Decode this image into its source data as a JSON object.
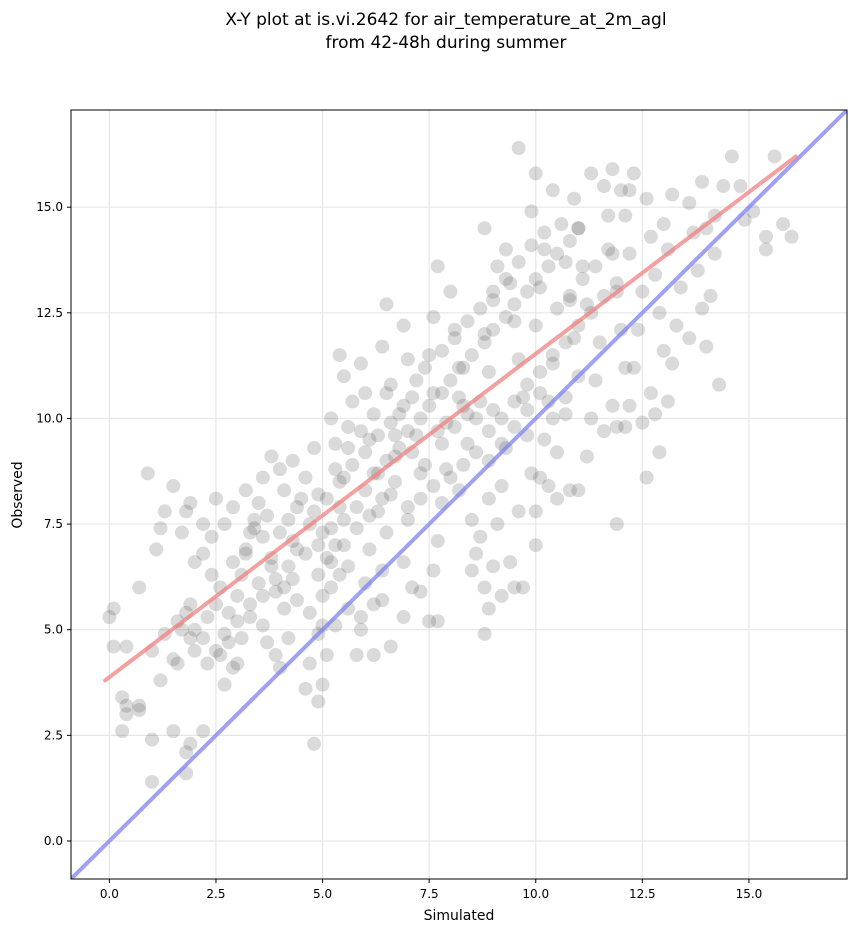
{
  "chart_data": {
    "type": "scatter",
    "title": "X-Y plot at is.vi.2642 for air_temperature_at_2m_agl",
    "subtitle": "from 42-48h during summer",
    "xlabel": "Simulated",
    "ylabel": "Observed",
    "xlim": [
      -0.9,
      17.3
    ],
    "ylim": [
      -0.9,
      17.3
    ],
    "xticks": [
      0.0,
      2.5,
      5.0,
      7.5,
      10.0,
      12.5,
      15.0
    ],
    "yticks": [
      0.0,
      2.5,
      5.0,
      7.5,
      10.0,
      12.5,
      15.0
    ],
    "tick_labels": [
      "0.0",
      "2.5",
      "5.0",
      "7.5",
      "10.0",
      "12.5",
      "15.0"
    ],
    "grid": true,
    "point_color": "#555555",
    "regression_line": {
      "color": "#f08080",
      "x": [
        -0.1,
        16.1
      ],
      "y": [
        3.8,
        16.2
      ]
    },
    "identity_line": {
      "color": "#8080f0",
      "x": [
        -0.9,
        17.3
      ],
      "y": [
        -0.9,
        17.3
      ]
    },
    "points": [
      [
        0.0,
        5.3
      ],
      [
        0.1,
        5.5
      ],
      [
        0.1,
        4.6
      ],
      [
        0.4,
        4.6
      ],
      [
        0.3,
        3.4
      ],
      [
        0.4,
        3.2
      ],
      [
        0.4,
        3.0
      ],
      [
        0.3,
        2.6
      ],
      [
        0.7,
        3.1
      ],
      [
        0.7,
        3.2
      ],
      [
        0.7,
        6.0
      ],
      [
        0.9,
        8.7
      ],
      [
        1.1,
        6.9
      ],
      [
        1.2,
        7.4
      ],
      [
        1.3,
        7.8
      ],
      [
        1.5,
        8.4
      ],
      [
        1.0,
        4.5
      ],
      [
        1.3,
        4.9
      ],
      [
        1.2,
        3.8
      ],
      [
        1.0,
        2.4
      ],
      [
        1.0,
        1.4
      ],
      [
        1.5,
        2.6
      ],
      [
        1.8,
        2.1
      ],
      [
        1.9,
        2.3
      ],
      [
        1.8,
        1.6
      ],
      [
        2.2,
        2.6
      ],
      [
        1.5,
        4.3
      ],
      [
        1.6,
        4.2
      ],
      [
        1.7,
        5.0
      ],
      [
        1.8,
        5.4
      ],
      [
        1.9,
        5.6
      ],
      [
        1.7,
        7.3
      ],
      [
        1.8,
        7.8
      ],
      [
        1.9,
        8.0
      ],
      [
        2.0,
        6.6
      ],
      [
        2.2,
        7.5
      ],
      [
        2.5,
        8.1
      ],
      [
        2.0,
        4.5
      ],
      [
        2.3,
        4.2
      ],
      [
        2.6,
        4.4
      ],
      [
        2.7,
        3.7
      ],
      [
        2.9,
        4.1
      ],
      [
        2.8,
        5.4
      ],
      [
        3.0,
        5.8
      ],
      [
        3.1,
        6.3
      ],
      [
        3.2,
        6.8
      ],
      [
        3.3,
        7.3
      ],
      [
        3.4,
        7.6
      ],
      [
        3.5,
        8.0
      ],
      [
        3.6,
        7.2
      ],
      [
        3.8,
        6.5
      ],
      [
        3.9,
        5.9
      ],
      [
        3.6,
        5.1
      ],
      [
        3.7,
        4.7
      ],
      [
        3.9,
        4.4
      ],
      [
        4.0,
        4.1
      ],
      [
        4.2,
        4.8
      ],
      [
        4.1,
        5.5
      ],
      [
        4.3,
        6.2
      ],
      [
        4.4,
        6.9
      ],
      [
        4.2,
        7.6
      ],
      [
        4.5,
        8.1
      ],
      [
        4.0,
        8.8
      ],
      [
        3.8,
        9.1
      ],
      [
        4.3,
        9.0
      ],
      [
        4.6,
        8.6
      ],
      [
        4.8,
        9.3
      ],
      [
        4.9,
        8.2
      ],
      [
        5.0,
        7.3
      ],
      [
        5.1,
        6.7
      ],
      [
        5.0,
        5.8
      ],
      [
        4.9,
        4.9
      ],
      [
        4.7,
        4.2
      ],
      [
        4.6,
        3.6
      ],
      [
        4.9,
        3.3
      ],
      [
        4.8,
        2.3
      ],
      [
        5.0,
        3.7
      ],
      [
        5.1,
        4.4
      ],
      [
        5.3,
        5.1
      ],
      [
        5.2,
        6.0
      ],
      [
        5.3,
        7.0
      ],
      [
        5.4,
        7.9
      ],
      [
        5.5,
        8.6
      ],
      [
        5.3,
        9.4
      ],
      [
        5.2,
        10.0
      ],
      [
        5.6,
        9.8
      ],
      [
        5.7,
        10.4
      ],
      [
        5.5,
        11.0
      ],
      [
        5.4,
        11.5
      ],
      [
        5.9,
        11.3
      ],
      [
        6.0,
        10.6
      ],
      [
        6.1,
        9.5
      ],
      [
        6.2,
        8.7
      ],
      [
        6.3,
        7.8
      ],
      [
        6.1,
        6.9
      ],
      [
        6.0,
        6.1
      ],
      [
        5.9,
        5.3
      ],
      [
        5.8,
        4.4
      ],
      [
        6.2,
        5.6
      ],
      [
        6.4,
        6.4
      ],
      [
        6.5,
        7.3
      ],
      [
        6.6,
        8.2
      ],
      [
        6.7,
        9.1
      ],
      [
        6.8,
        10.1
      ],
      [
        6.6,
        10.8
      ],
      [
        6.4,
        11.7
      ],
      [
        6.5,
        12.7
      ],
      [
        6.9,
        12.2
      ],
      [
        7.0,
        11.4
      ],
      [
        7.1,
        10.5
      ],
      [
        7.2,
        9.6
      ],
      [
        7.3,
        8.7
      ],
      [
        7.0,
        7.6
      ],
      [
        6.9,
        6.6
      ],
      [
        7.1,
        6.0
      ],
      [
        7.3,
        5.9
      ],
      [
        7.5,
        5.2
      ],
      [
        7.7,
        5.2
      ],
      [
        7.6,
        6.4
      ],
      [
        7.7,
        7.1
      ],
      [
        7.8,
        8.0
      ],
      [
        7.9,
        8.8
      ],
      [
        7.7,
        9.7
      ],
      [
        7.6,
        10.6
      ],
      [
        7.5,
        11.5
      ],
      [
        7.6,
        12.4
      ],
      [
        7.7,
        13.6
      ],
      [
        8.0,
        13.0
      ],
      [
        8.1,
        12.1
      ],
      [
        8.2,
        11.2
      ],
      [
        8.3,
        10.3
      ],
      [
        8.4,
        9.4
      ],
      [
        8.2,
        8.3
      ],
      [
        8.5,
        7.6
      ],
      [
        8.6,
        6.8
      ],
      [
        8.8,
        6.0
      ],
      [
        8.8,
        4.9
      ],
      [
        8.9,
        5.5
      ],
      [
        9.0,
        6.5
      ],
      [
        9.1,
        7.5
      ],
      [
        9.2,
        8.4
      ],
      [
        9.3,
        9.3
      ],
      [
        9.0,
        10.2
      ],
      [
        8.9,
        11.1
      ],
      [
        8.8,
        12.0
      ],
      [
        9.0,
        12.8
      ],
      [
        9.1,
        13.6
      ],
      [
        8.8,
        14.5
      ],
      [
        9.3,
        14.0
      ],
      [
        9.4,
        13.2
      ],
      [
        9.5,
        12.3
      ],
      [
        9.6,
        11.4
      ],
      [
        9.7,
        10.5
      ],
      [
        9.8,
        9.6
      ],
      [
        9.9,
        8.7
      ],
      [
        9.6,
        7.8
      ],
      [
        9.4,
        6.6
      ],
      [
        9.7,
        6.0
      ],
      [
        10.0,
        7.0
      ],
      [
        10.0,
        7.8
      ],
      [
        10.1,
        8.6
      ],
      [
        10.2,
        9.5
      ],
      [
        10.3,
        10.4
      ],
      [
        10.4,
        11.3
      ],
      [
        10.0,
        12.2
      ],
      [
        10.1,
        13.1
      ],
      [
        10.2,
        14.0
      ],
      [
        9.9,
        14.9
      ],
      [
        10.0,
        15.8
      ],
      [
        10.4,
        15.4
      ],
      [
        10.6,
        14.6
      ],
      [
        10.7,
        13.7
      ],
      [
        10.8,
        12.8
      ],
      [
        10.9,
        11.9
      ],
      [
        11.0,
        11.0
      ],
      [
        10.7,
        10.1
      ],
      [
        10.5,
        9.2
      ],
      [
        10.3,
        8.4
      ],
      [
        10.5,
        8.1
      ],
      [
        10.8,
        8.3
      ],
      [
        11.0,
        8.3
      ],
      [
        11.2,
        9.1
      ],
      [
        11.3,
        10.0
      ],
      [
        11.4,
        10.9
      ],
      [
        11.5,
        11.8
      ],
      [
        11.2,
        12.7
      ],
      [
        11.1,
        13.6
      ],
      [
        11.0,
        14.5
      ],
      [
        10.9,
        15.2
      ],
      [
        11.3,
        15.8
      ],
      [
        11.6,
        15.5
      ],
      [
        11.7,
        14.8
      ],
      [
        11.8,
        13.9
      ],
      [
        11.9,
        13.0
      ],
      [
        12.0,
        12.1
      ],
      [
        12.1,
        11.2
      ],
      [
        11.8,
        10.3
      ],
      [
        11.6,
        9.7
      ],
      [
        11.9,
        9.8
      ],
      [
        12.1,
        9.8
      ],
      [
        12.2,
        10.3
      ],
      [
        12.3,
        11.2
      ],
      [
        12.4,
        12.1
      ],
      [
        12.5,
        13.0
      ],
      [
        12.2,
        13.9
      ],
      [
        12.1,
        14.8
      ],
      [
        12.0,
        15.4
      ],
      [
        12.3,
        15.8
      ],
      [
        12.6,
        15.2
      ],
      [
        12.7,
        14.3
      ],
      [
        12.8,
        13.4
      ],
      [
        12.9,
        12.5
      ],
      [
        13.0,
        11.6
      ],
      [
        12.7,
        10.6
      ],
      [
        12.5,
        9.9
      ],
      [
        12.6,
        8.6
      ],
      [
        12.9,
        9.2
      ],
      [
        12.8,
        10.1
      ],
      [
        13.1,
        10.4
      ],
      [
        13.2,
        11.3
      ],
      [
        13.3,
        12.2
      ],
      [
        13.4,
        13.1
      ],
      [
        13.1,
        14.0
      ],
      [
        13.0,
        14.6
      ],
      [
        13.2,
        15.3
      ],
      [
        13.6,
        15.1
      ],
      [
        13.7,
        14.4
      ],
      [
        13.8,
        13.5
      ],
      [
        13.9,
        12.6
      ],
      [
        14.0,
        11.7
      ],
      [
        13.6,
        11.9
      ],
      [
        14.1,
        12.9
      ],
      [
        14.2,
        13.9
      ],
      [
        14.0,
        14.5
      ],
      [
        14.3,
        10.8
      ],
      [
        14.2,
        14.8
      ],
      [
        14.4,
        15.5
      ],
      [
        14.6,
        16.2
      ],
      [
        14.8,
        15.5
      ],
      [
        14.9,
        14.7
      ],
      [
        15.1,
        14.9
      ],
      [
        15.4,
        14.3
      ],
      [
        15.4,
        14.0
      ],
      [
        15.6,
        16.2
      ],
      [
        15.8,
        14.6
      ],
      [
        16.0,
        14.3
      ],
      [
        9.6,
        16.4
      ],
      [
        11.8,
        15.9
      ],
      [
        12.2,
        15.4
      ],
      [
        13.9,
        15.6
      ],
      [
        11.9,
        7.5
      ],
      [
        9.2,
        5.8
      ],
      [
        8.5,
        6.4
      ],
      [
        8.7,
        7.2
      ],
      [
        8.9,
        8.1
      ],
      [
        9.5,
        6.0
      ],
      [
        6.6,
        4.6
      ],
      [
        6.9,
        5.3
      ],
      [
        6.4,
        5.7
      ],
      [
        6.2,
        4.4
      ],
      [
        5.9,
        5.0
      ],
      [
        5.6,
        5.5
      ],
      [
        5.6,
        6.5
      ],
      [
        5.4,
        6.3
      ],
      [
        5.0,
        5.1
      ],
      [
        4.7,
        5.4
      ],
      [
        4.4,
        5.7
      ],
      [
        4.1,
        6.0
      ],
      [
        3.8,
        6.7
      ],
      [
        3.5,
        6.1
      ],
      [
        3.3,
        5.3
      ],
      [
        3.1,
        4.8
      ],
      [
        3.0,
        4.2
      ],
      [
        2.7,
        4.9
      ],
      [
        2.5,
        5.6
      ],
      [
        2.4,
        6.3
      ],
      [
        2.2,
        6.8
      ],
      [
        2.4,
        7.2
      ],
      [
        2.7,
        7.5
      ],
      [
        2.9,
        7.9
      ],
      [
        3.2,
        8.3
      ],
      [
        3.6,
        8.6
      ],
      [
        4.1,
        8.3
      ],
      [
        4.4,
        7.9
      ],
      [
        4.7,
        7.5
      ],
      [
        4.9,
        7.0
      ],
      [
        5.2,
        7.4
      ],
      [
        5.5,
        7.6
      ],
      [
        5.8,
        7.9
      ],
      [
        6.0,
        8.3
      ],
      [
        6.3,
        8.7
      ],
      [
        6.5,
        9.0
      ],
      [
        6.8,
        9.3
      ],
      [
        7.0,
        9.7
      ],
      [
        7.3,
        10.0
      ],
      [
        7.5,
        10.3
      ],
      [
        7.8,
        10.6
      ],
      [
        8.0,
        10.9
      ],
      [
        8.3,
        11.2
      ],
      [
        8.5,
        11.5
      ],
      [
        8.8,
        11.8
      ],
      [
        9.0,
        12.1
      ],
      [
        9.3,
        12.4
      ],
      [
        9.5,
        12.7
      ],
      [
        9.8,
        13.0
      ],
      [
        10.0,
        13.3
      ],
      [
        10.3,
        13.6
      ],
      [
        10.5,
        13.9
      ],
      [
        10.8,
        14.2
      ],
      [
        11.0,
        14.5
      ],
      [
        6.7,
        9.6
      ],
      [
        7.1,
        9.2
      ],
      [
        7.4,
        8.9
      ],
      [
        7.8,
        9.4
      ],
      [
        8.1,
        9.8
      ],
      [
        8.4,
        10.1
      ],
      [
        8.7,
        10.4
      ],
      [
        7.2,
        10.9
      ],
      [
        6.9,
        10.3
      ],
      [
        6.6,
        9.9
      ],
      [
        6.3,
        9.6
      ],
      [
        6.0,
        9.2
      ],
      [
        5.7,
        8.9
      ],
      [
        5.4,
        8.5
      ],
      [
        5.1,
        8.1
      ],
      [
        4.8,
        7.8
      ],
      [
        7.9,
        9.9
      ],
      [
        8.2,
        10.5
      ],
      [
        8.6,
        10.0
      ],
      [
        8.9,
        9.7
      ],
      [
        9.2,
        10.0
      ],
      [
        9.5,
        10.4
      ],
      [
        9.8,
        10.8
      ],
      [
        10.1,
        11.1
      ],
      [
        10.4,
        11.5
      ],
      [
        10.7,
        11.8
      ],
      [
        11.0,
        12.2
      ],
      [
        11.3,
        12.5
      ],
      [
        11.6,
        12.9
      ],
      [
        11.9,
        13.2
      ],
      [
        7.6,
        8.4
      ],
      [
        7.3,
        8.1
      ],
      [
        7.0,
        7.9
      ],
      [
        6.7,
        8.5
      ],
      [
        6.4,
        8.1
      ],
      [
        6.1,
        7.7
      ],
      [
        5.8,
        7.4
      ],
      [
        5.5,
        7.0
      ],
      [
        5.2,
        6.6
      ],
      [
        4.9,
        6.3
      ],
      [
        8.0,
        8.6
      ],
      [
        8.3,
        8.9
      ],
      [
        8.6,
        9.2
      ],
      [
        8.9,
        9.0
      ],
      [
        9.2,
        9.4
      ],
      [
        9.5,
        9.8
      ],
      [
        9.8,
        10.2
      ],
      [
        10.1,
        10.6
      ],
      [
        10.4,
        10.0
      ],
      [
        10.7,
        10.5
      ],
      [
        6.5,
        10.6
      ],
      [
        6.2,
        10.1
      ],
      [
        5.9,
        9.7
      ],
      [
        5.6,
        9.3
      ],
      [
        5.3,
        8.8
      ],
      [
        7.4,
        11.2
      ],
      [
        7.8,
        11.6
      ],
      [
        8.1,
        11.9
      ],
      [
        8.4,
        12.3
      ],
      [
        8.7,
        12.6
      ],
      [
        9.0,
        13.0
      ],
      [
        9.3,
        13.3
      ],
      [
        9.6,
        13.7
      ],
      [
        9.9,
        14.1
      ],
      [
        10.2,
        14.4
      ],
      [
        10.5,
        12.6
      ],
      [
        10.8,
        12.9
      ],
      [
        11.1,
        13.3
      ],
      [
        11.4,
        13.6
      ],
      [
        11.7,
        14.0
      ],
      [
        2.0,
        5.0
      ],
      [
        2.3,
        5.3
      ],
      [
        1.9,
        4.8
      ],
      [
        1.6,
        5.2
      ],
      [
        2.6,
        6.0
      ],
      [
        2.9,
        6.6
      ],
      [
        3.2,
        6.9
      ],
      [
        3.4,
        7.4
      ],
      [
        3.7,
        7.7
      ],
      [
        4.0,
        7.3
      ],
      [
        4.3,
        7.1
      ],
      [
        4.6,
        6.8
      ],
      [
        4.2,
        6.5
      ],
      [
        3.9,
        6.2
      ],
      [
        3.6,
        5.8
      ],
      [
        3.3,
        5.6
      ],
      [
        3.0,
        5.2
      ],
      [
        2.8,
        4.7
      ],
      [
        2.5,
        4.5
      ],
      [
        2.2,
        4.8
      ]
    ]
  }
}
